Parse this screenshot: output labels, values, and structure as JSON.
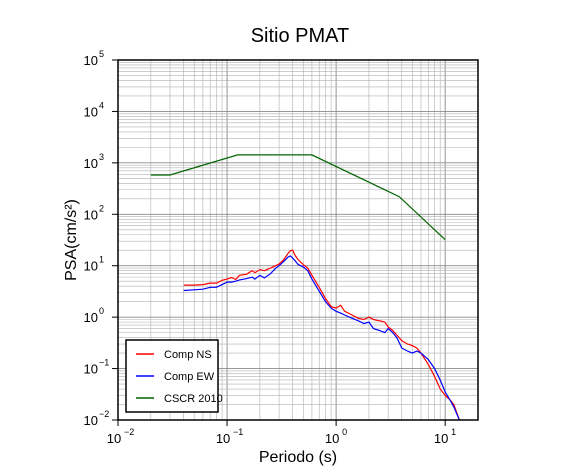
{
  "chart_data": {
    "type": "line",
    "title": "Sitio PMAT",
    "xlabel": "Periodo (s)",
    "ylabel": "PSA(cm/s²)",
    "xscale": "log",
    "yscale": "log",
    "xlim": [
      0.01,
      20
    ],
    "ylim": [
      0.01,
      100000
    ],
    "x_ticks": [
      {
        "base": "10",
        "exp": "−2"
      },
      {
        "base": "10",
        "exp": "−1"
      },
      {
        "base": "10",
        "exp": "0"
      },
      {
        "base": "10",
        "exp": "1"
      }
    ],
    "y_ticks": [
      {
        "base": "10",
        "exp": "−2"
      },
      {
        "base": "10",
        "exp": "−1"
      },
      {
        "base": "10",
        "exp": "0"
      },
      {
        "base": "10",
        "exp": "1"
      },
      {
        "base": "10",
        "exp": "2"
      },
      {
        "base": "10",
        "exp": "3"
      },
      {
        "base": "10",
        "exp": "4"
      },
      {
        "base": "10",
        "exp": "5"
      }
    ],
    "grid": true,
    "legend_position": "bottom-left",
    "series": [
      {
        "name": "Comp NS",
        "color": "#ff0000",
        "x": [
          0.04,
          0.05,
          0.06,
          0.07,
          0.08,
          0.09,
          0.1,
          0.11,
          0.12,
          0.13,
          0.15,
          0.17,
          0.18,
          0.2,
          0.22,
          0.25,
          0.28,
          0.3,
          0.33,
          0.36,
          0.38,
          0.4,
          0.42,
          0.45,
          0.5,
          0.55,
          0.6,
          0.7,
          0.8,
          0.9,
          1.0,
          1.1,
          1.2,
          1.4,
          1.6,
          1.8,
          2.0,
          2.2,
          2.5,
          2.8,
          3.0,
          3.3,
          3.6,
          4.0,
          4.5,
          5.0,
          5.5,
          6.0,
          7.0,
          8.0,
          9.0,
          10.0,
          11.0,
          12.0,
          13.5
        ],
        "y": [
          4.2,
          4.2,
          4.3,
          4.6,
          4.6,
          5.2,
          5.5,
          5.9,
          5.4,
          6.5,
          6.8,
          8.0,
          7.3,
          8.4,
          8.0,
          9.0,
          10.0,
          10.8,
          13.0,
          17.0,
          19.5,
          20.0,
          16.0,
          13.0,
          10.5,
          9.0,
          6.5,
          3.8,
          2.3,
          1.6,
          1.5,
          1.7,
          1.3,
          1.1,
          0.95,
          0.9,
          1.0,
          0.9,
          0.85,
          0.8,
          0.65,
          0.55,
          0.45,
          0.35,
          0.3,
          0.28,
          0.25,
          0.2,
          0.12,
          0.07,
          0.04,
          0.03,
          0.025,
          0.02,
          0.01
        ]
      },
      {
        "name": "Comp EW",
        "color": "#0000ff",
        "x": [
          0.04,
          0.05,
          0.06,
          0.07,
          0.08,
          0.09,
          0.1,
          0.11,
          0.12,
          0.13,
          0.15,
          0.17,
          0.18,
          0.2,
          0.22,
          0.25,
          0.28,
          0.3,
          0.33,
          0.36,
          0.38,
          0.4,
          0.42,
          0.45,
          0.5,
          0.55,
          0.6,
          0.7,
          0.8,
          0.9,
          1.0,
          1.1,
          1.2,
          1.4,
          1.6,
          1.8,
          2.0,
          2.2,
          2.5,
          2.8,
          3.0,
          3.3,
          3.6,
          4.0,
          4.5,
          5.0,
          5.5,
          6.0,
          7.0,
          8.0,
          9.0,
          10.0,
          11.0,
          12.0,
          13.5
        ],
        "y": [
          3.3,
          3.4,
          3.5,
          3.8,
          3.8,
          4.3,
          4.8,
          4.8,
          5.0,
          5.3,
          5.6,
          6.0,
          5.5,
          6.5,
          5.8,
          7.0,
          9.0,
          10.0,
          12.0,
          14.5,
          15.5,
          14.0,
          12.5,
          10.5,
          9.5,
          8.0,
          5.5,
          3.2,
          2.0,
          1.5,
          1.3,
          1.2,
          1.1,
          0.95,
          0.85,
          0.75,
          0.8,
          0.6,
          0.55,
          0.5,
          0.6,
          0.5,
          0.4,
          0.25,
          0.22,
          0.2,
          0.22,
          0.2,
          0.15,
          0.1,
          0.06,
          0.035,
          0.025,
          0.018,
          0.01
        ]
      },
      {
        "name": "CSCR 2010",
        "color": "#006400",
        "x": [
          0.02,
          0.03,
          0.125,
          0.6,
          3.8,
          10.0
        ],
        "y": [
          580,
          580,
          1430,
          1430,
          220,
          32
        ]
      }
    ]
  }
}
